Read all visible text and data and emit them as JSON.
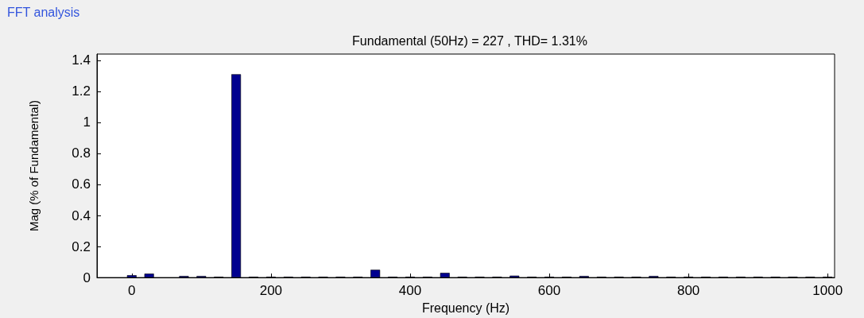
{
  "chart_data": {
    "type": "bar",
    "title": "FFT analysis",
    "subtitle": "Fundamental (50Hz) = 227 , THD= 1.31%",
    "xlabel": "Frequency (Hz)",
    "ylabel": "Mag (% of Fundamental)",
    "x": [
      0,
      25,
      50,
      75,
      100,
      125,
      150,
      175,
      200,
      225,
      250,
      275,
      300,
      325,
      350,
      375,
      400,
      425,
      450,
      475,
      500,
      525,
      550,
      575,
      600,
      625,
      650,
      675,
      700,
      725,
      750,
      775,
      800,
      825,
      850,
      875,
      900,
      925,
      950,
      975,
      1000
    ],
    "values": [
      0.015,
      0.025,
      null,
      0.01,
      0.01,
      0.005,
      1.31,
      0.005,
      0.005,
      0.005,
      0.005,
      0.005,
      0.005,
      0.005,
      0.05,
      0.005,
      0.005,
      0.005,
      0.03,
      0.005,
      0.005,
      0.005,
      0.012,
      0.005,
      0.005,
      0.005,
      0.01,
      0.005,
      0.005,
      0.005,
      0.01,
      0.005,
      0.005,
      0.005,
      0.005,
      0.005,
      0.005,
      0.005,
      0.005,
      0.005,
      0.005
    ],
    "color": "#00008f",
    "xlim": [
      -50,
      1010
    ],
    "xticks": [
      0,
      200,
      400,
      600,
      800,
      1000
    ],
    "ylim": [
      0,
      1.44
    ],
    "yticks": [
      0,
      0.2,
      0.4,
      0.6,
      0.8,
      1,
      1.2,
      1.4
    ],
    "grid": false
  }
}
